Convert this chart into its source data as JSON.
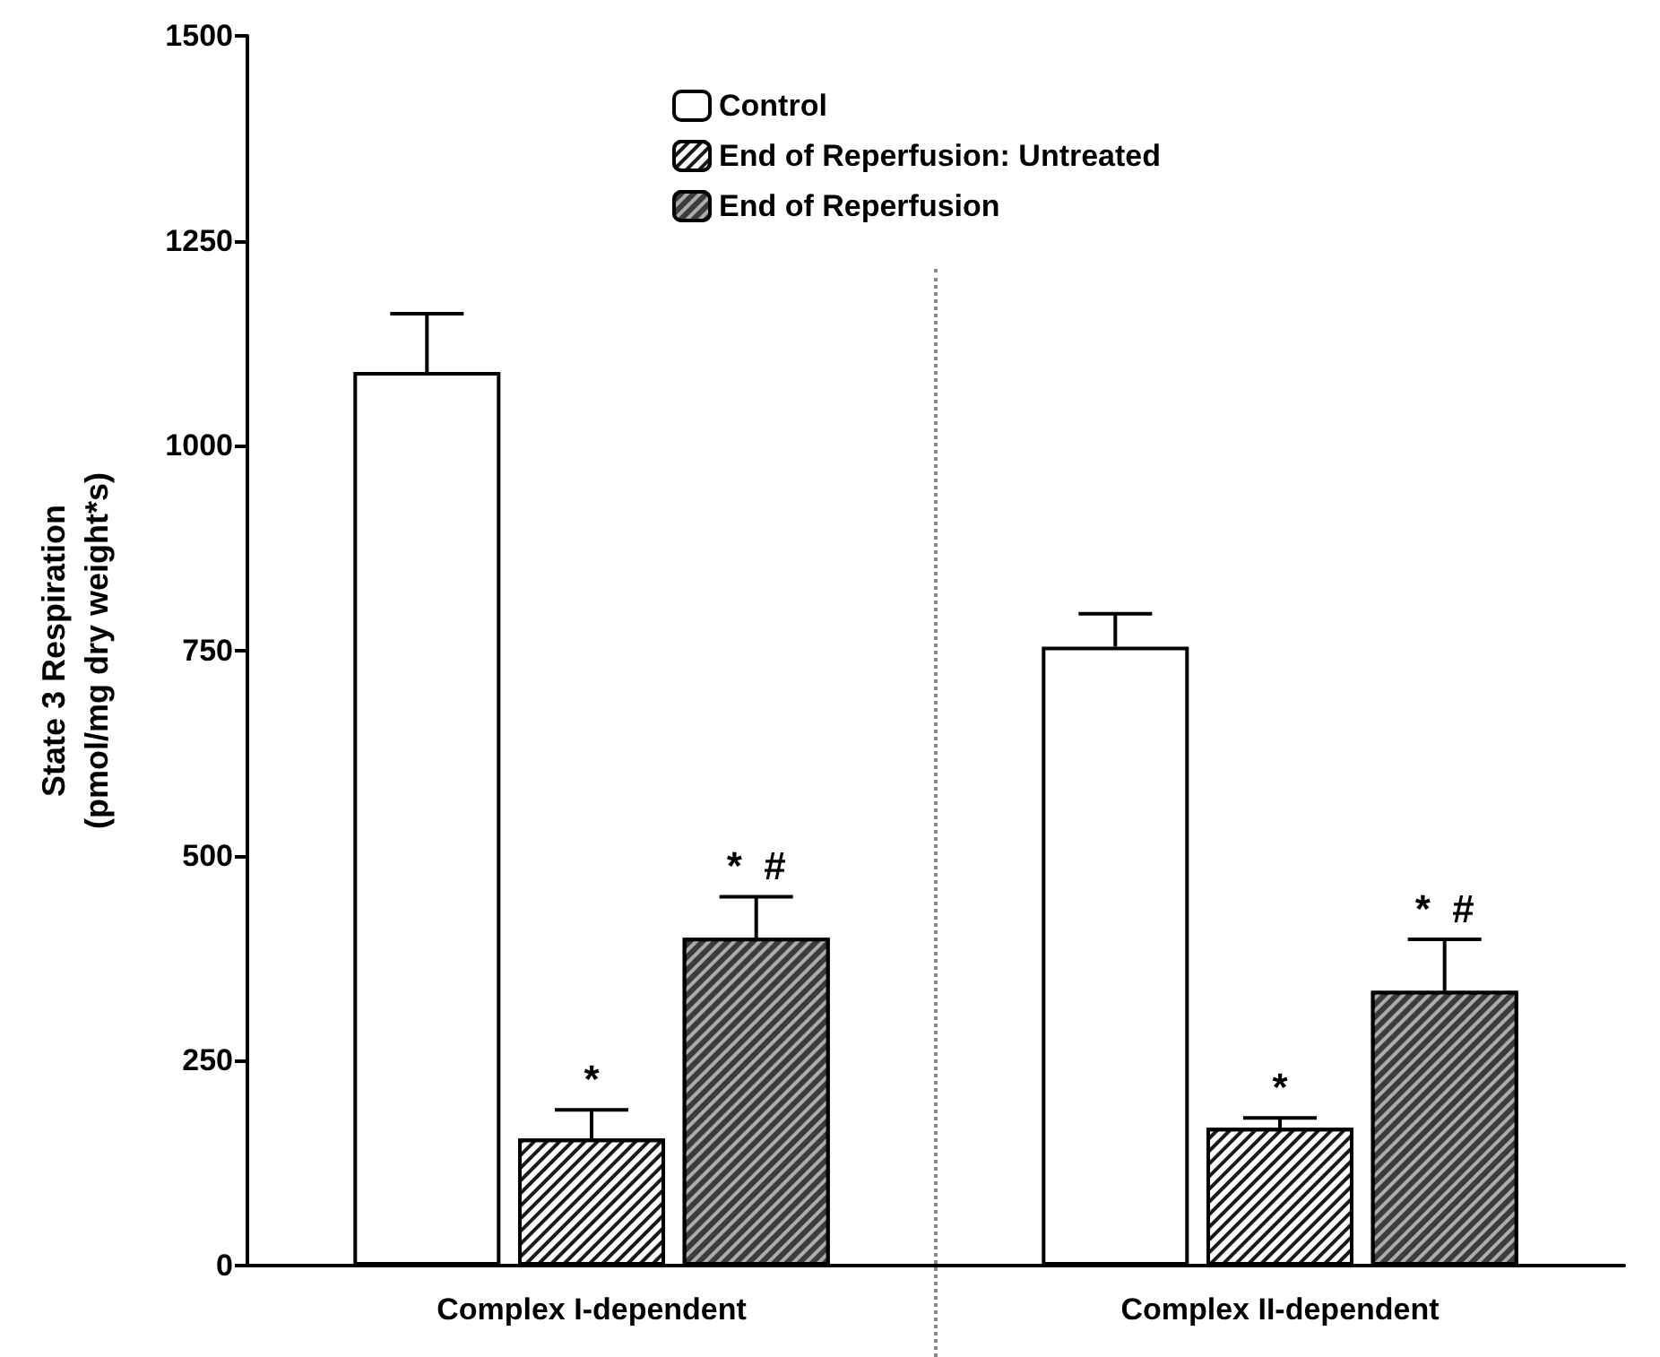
{
  "chart_data": {
    "type": "bar",
    "ylabel": "State 3 Respiration\n(pmol/mg dry weight*s)",
    "categories": [
      "Complex I-dependent",
      "Complex II-dependent"
    ],
    "series": [
      {
        "name": "Control",
        "color": "#ffffff",
        "values": [
          1090,
          755
        ],
        "errors": [
          [
            1090,
            1161
          ],
          [
            755,
            795
          ]
        ]
      },
      {
        "name": "End of Reperfusion: Untreated",
        "color": "#ffffff",
        "values": [
          155,
          168
        ],
        "errors": [
          [
            155,
            190
          ],
          [
            168,
            180
          ]
        ],
        "value_labels": [
          "*",
          "*"
        ]
      },
      {
        "name": "End of Reperfusion",
        "color": "#3c3c3c",
        "values": [
          400,
          335
        ],
        "errors": [
          [
            400,
            450
          ],
          [
            335,
            398
          ]
        ],
        "value_labels": [
          "*  #",
          "*  #"
        ]
      }
    ],
    "ylim": [
      0,
      1500
    ],
    "yticks": [
      0,
      250,
      500,
      750,
      1000,
      1250,
      1500
    ],
    "grid": false,
    "legend": "top"
  }
}
